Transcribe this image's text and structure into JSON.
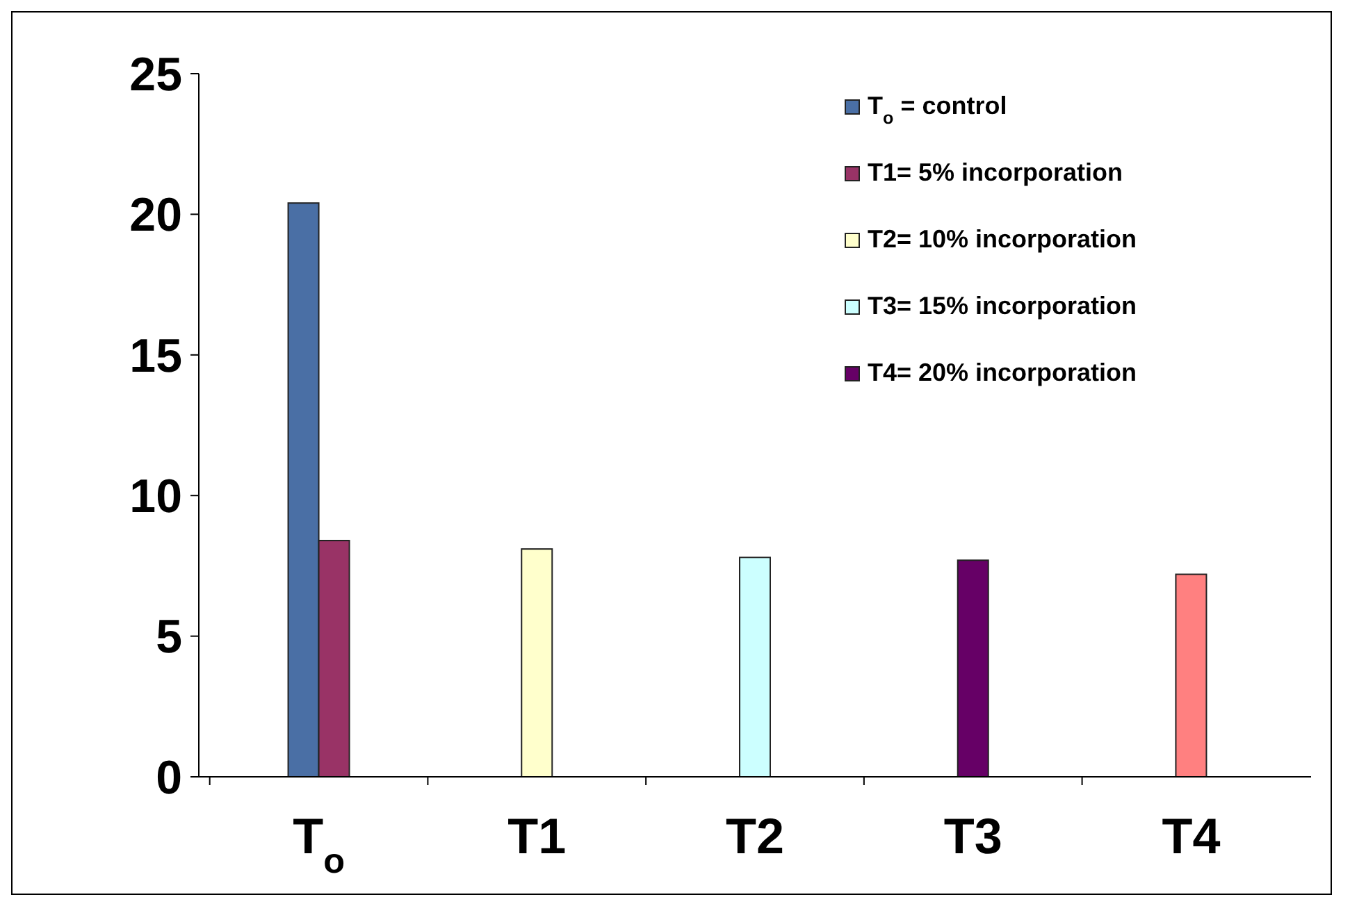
{
  "chart_data": {
    "type": "bar",
    "categories": [
      "T$_{o}$",
      "T1",
      "T2",
      "T3",
      "T4"
    ],
    "series": [
      {
        "name": "T$_{o}$ = control",
        "color": "#4a6fa5",
        "values": [
          20.4,
          null,
          null,
          null,
          null
        ]
      },
      {
        "name": "T1= 5% incorporation",
        "color": "#993366",
        "values": [
          8.4,
          null,
          null,
          null,
          null
        ]
      },
      {
        "name": "T2= 10% incorporation",
        "color": "#ffffcc",
        "values": [
          null,
          8.1,
          null,
          null,
          null
        ]
      },
      {
        "name": "T3= 15% incorporation",
        "color": "#ccffff",
        "values": [
          null,
          null,
          7.8,
          null,
          null
        ]
      },
      {
        "name": "T4= 20% incorporation",
        "color": "#660066",
        "values": [
          null,
          null,
          null,
          7.7,
          null
        ]
      },
      {
        "color": "#ff8080",
        "values": [
          null,
          null,
          null,
          null,
          7.2
        ]
      }
    ],
    "ylim": [
      0,
      25
    ],
    "yticks": [
      0,
      5,
      10,
      15,
      20,
      25
    ],
    "grid": false,
    "legend": "top right"
  }
}
